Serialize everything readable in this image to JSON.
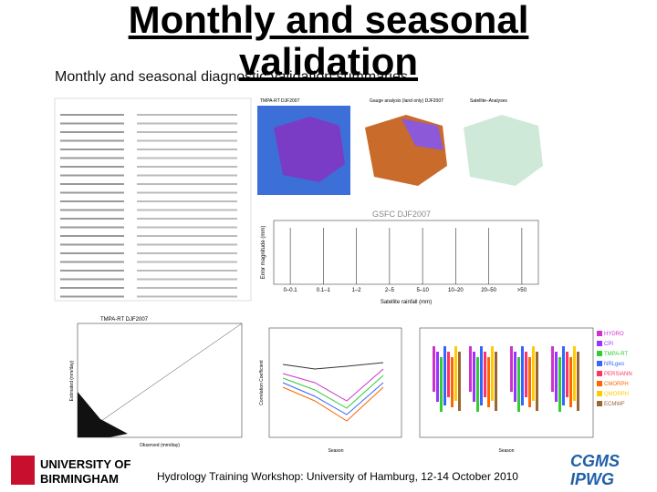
{
  "header": {
    "title_lines": [
      "Monthly and seasonal",
      "validation"
    ],
    "subtitle": "Monthly and seasonal diagnostic validation summaries"
  },
  "figures": {
    "maps": {
      "titles": [
        "TMPA-RT DJF2007",
        "Gauge analysis (land only) DJF2007",
        "Satellite–Analyses"
      ]
    },
    "box_chart": {
      "title": "GSFC DJF2007",
      "x_label": "Satellite rainfall (mm)",
      "y_label": "Error magnitude (mm)",
      "categories": [
        "0–0.1",
        "0.1–1",
        "1–2",
        "2–5",
        "5–10",
        "10–20",
        "20–50",
        ">50"
      ]
    },
    "scatter": {
      "title": "TMPA-RT DJF2007",
      "x_label": "Observed (mm/day)",
      "y_label": "Estimated (mm/day)"
    },
    "line_chart": {
      "x_label": "Season",
      "y_label": "Correlation Coefficient"
    },
    "season_box": {
      "x_label": "Season",
      "legend": [
        {
          "name": "HYDRO",
          "color": "#cc33cc"
        },
        {
          "name": "CPI",
          "color": "#9933ff"
        },
        {
          "name": "TMPA-RT",
          "color": "#33cc33"
        },
        {
          "name": "NRLgeo",
          "color": "#3366ff"
        },
        {
          "name": "PERSIANN",
          "color": "#ff3366"
        },
        {
          "name": "CMORPH",
          "color": "#ff6600"
        },
        {
          "name": "QMORPH",
          "color": "#ffcc00"
        },
        {
          "name": "ECMWF",
          "color": "#996633"
        }
      ]
    }
  },
  "footer": {
    "text": "Hydrology Training Workshop: University of Hamburg, 12-14 October 2010",
    "university": [
      "UNIVERSITY OF",
      "BIRMINGHAM"
    ],
    "partners": [
      "CGMS",
      "IPWG"
    ]
  }
}
